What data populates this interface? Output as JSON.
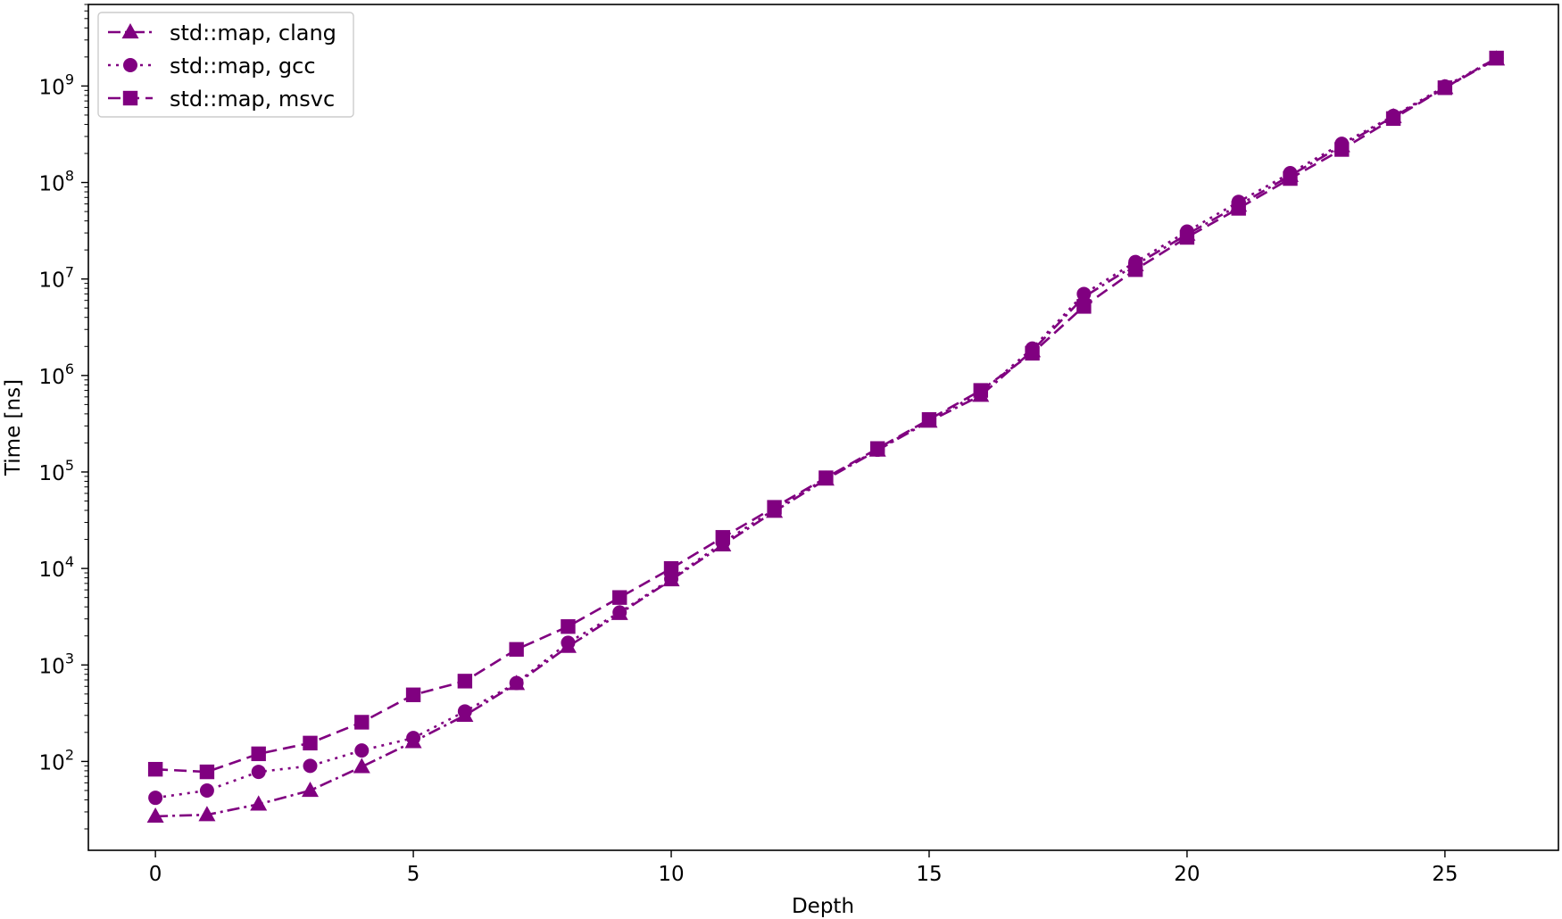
{
  "chart_data": {
    "type": "line",
    "title": "",
    "xlabel": "Depth",
    "ylabel": "Time [ns]",
    "xlim": [
      -1.3,
      27.2
    ],
    "ylim": [
      12,
      7000000000
    ],
    "yscale": "log",
    "grid": false,
    "legend_position": "top-left",
    "color": "#800080",
    "x_ticks": [
      0,
      5,
      10,
      15,
      20,
      25
    ],
    "y_ticks": [
      {
        "value": 100,
        "base": "10",
        "exp": "2"
      },
      {
        "value": 1000,
        "base": "10",
        "exp": "3"
      },
      {
        "value": 10000,
        "base": "10",
        "exp": "4"
      },
      {
        "value": 100000,
        "base": "10",
        "exp": "5"
      },
      {
        "value": 1000000,
        "base": "10",
        "exp": "6"
      },
      {
        "value": 10000000,
        "base": "10",
        "exp": "7"
      },
      {
        "value": 100000000,
        "base": "10",
        "exp": "8"
      },
      {
        "value": 1000000000,
        "base": "10",
        "exp": "9"
      }
    ],
    "x": [
      0,
      1,
      2,
      3,
      4,
      5,
      6,
      7,
      8,
      9,
      10,
      11,
      12,
      13,
      14,
      15,
      16,
      17,
      18,
      19,
      20,
      21,
      22,
      23,
      24,
      25,
      26
    ],
    "series": [
      {
        "name": "std::map, clang",
        "marker": "triangle",
        "dash": "14,5,3,5",
        "values": [
          27,
          28,
          36,
          50,
          88,
          160,
          300,
          640,
          1550,
          3400,
          7600,
          17500,
          39000,
          84000,
          168000,
          335000,
          620000,
          1800000,
          6500000,
          14000000,
          29000000,
          58000000,
          118000000,
          240000000,
          480000000,
          960000000,
          1900000000
        ]
      },
      {
        "name": "std::map, gcc",
        "marker": "circle",
        "dash": "3,6",
        "values": [
          42,
          50,
          78,
          90,
          130,
          175,
          330,
          650,
          1700,
          3500,
          7800,
          18500,
          41000,
          86000,
          170000,
          345000,
          660000,
          1900000,
          7000000,
          15000000,
          31000000,
          63000000,
          125000000,
          252000000,
          490000000,
          990000000,
          1950000000
        ]
      },
      {
        "name": "std::map, msvc",
        "marker": "square",
        "dash": "14,7",
        "values": [
          83,
          78,
          120,
          155,
          255,
          490,
          680,
          1450,
          2500,
          5000,
          10000,
          21000,
          43000,
          87000,
          175000,
          350000,
          700000,
          1700000,
          5200000,
          12500000,
          27000000,
          54000000,
          110000000,
          220000000,
          460000000,
          960000000,
          1950000000
        ]
      }
    ]
  }
}
